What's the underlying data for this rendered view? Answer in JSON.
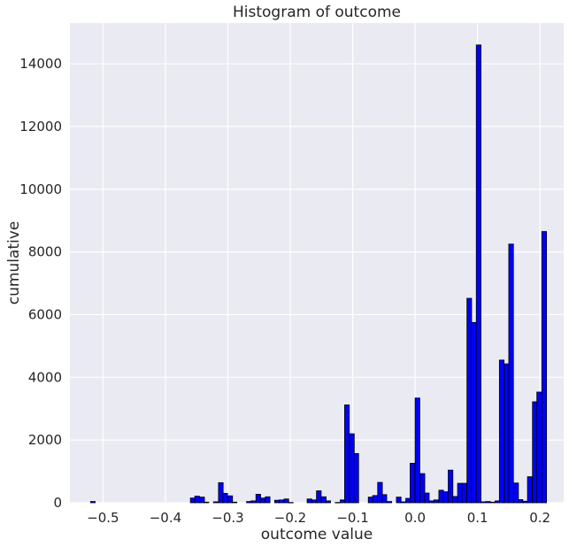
{
  "chart_data": {
    "type": "bar",
    "title": "Histogram of outcome",
    "xlabel": "outcome value",
    "ylabel": "cumulative",
    "xlim": [
      -0.553,
      0.238
    ],
    "ylim": [
      0,
      15300
    ],
    "grid": true,
    "x_ticks": [
      -0.5,
      -0.4,
      -0.3,
      -0.2,
      -0.1,
      0.0,
      0.1,
      0.2
    ],
    "x_tick_labels": [
      "−0.5",
      "−0.4",
      "−0.3",
      "−0.2",
      "−0.1",
      "0.0",
      "0.1",
      "0.2"
    ],
    "y_ticks": [
      0,
      2000,
      4000,
      6000,
      8000,
      10000,
      12000,
      14000
    ],
    "y_tick_labels": [
      "0",
      "2000",
      "4000",
      "6000",
      "8000",
      "10000",
      "12000",
      "14000"
    ],
    "bar_color": "#0000ff",
    "edge_color": "#000000",
    "bin_width": 0.0075,
    "bin_starts": [
      -0.52,
      -0.36,
      -0.353,
      -0.345,
      -0.338,
      -0.323,
      -0.315,
      -0.308,
      -0.3,
      -0.293,
      -0.27,
      -0.263,
      -0.255,
      -0.248,
      -0.24,
      -0.225,
      -0.218,
      -0.21,
      -0.203,
      -0.173,
      -0.165,
      -0.158,
      -0.15,
      -0.143,
      -0.128,
      -0.12,
      -0.113,
      -0.105,
      -0.098,
      -0.075,
      -0.068,
      -0.06,
      -0.053,
      -0.045,
      -0.03,
      -0.023,
      -0.015,
      -0.008,
      0.0,
      0.008,
      0.015,
      0.023,
      0.03,
      0.038,
      0.045,
      0.053,
      0.06,
      0.068,
      0.075,
      0.083,
      0.09,
      0.098,
      0.105,
      0.113,
      0.12,
      0.128,
      0.135,
      0.143,
      0.15,
      0.158,
      0.165,
      0.173,
      0.18,
      0.188,
      0.195,
      0.203,
      0.21,
      0.218
    ],
    "values": [
      40,
      150,
      210,
      180,
      20,
      30,
      640,
      300,
      220,
      20,
      40,
      60,
      270,
      150,
      190,
      80,
      90,
      120,
      10,
      120,
      90,
      380,
      190,
      60,
      10,
      90,
      3120,
      2200,
      1570,
      180,
      230,
      650,
      260,
      40,
      180,
      30,
      140,
      1260,
      3340,
      930,
      310,
      60,
      90,
      400,
      350,
      1040,
      200,
      620,
      620,
      6520,
      5750,
      14600,
      30,
      40,
      20,
      60,
      4550,
      4430,
      8250,
      630,
      100,
      50,
      830,
      3220,
      3530,
      8650,
      0,
      0
    ]
  }
}
